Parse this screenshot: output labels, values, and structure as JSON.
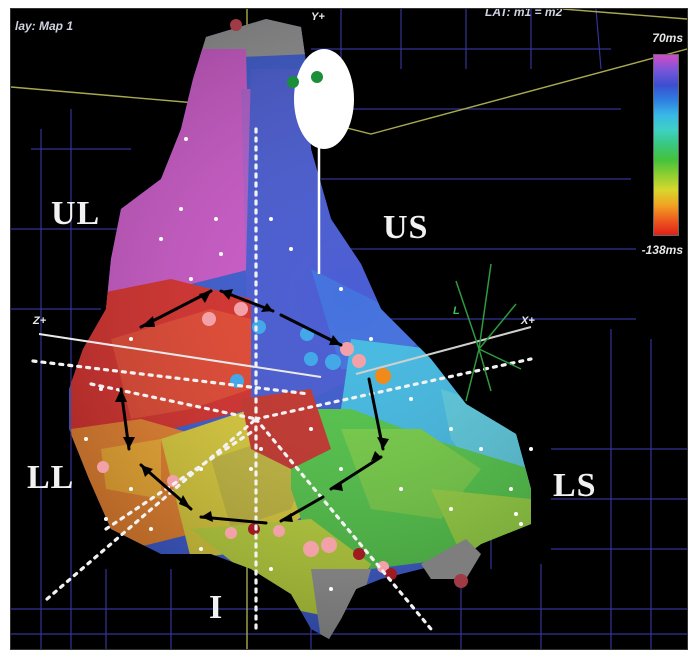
{
  "window": {
    "map_title": "lay: Map 1",
    "lat_label": "LAT: m1 = m2"
  },
  "axes": {
    "y": "Y+",
    "x": "X+",
    "z": "Z+",
    "l": "L"
  },
  "regions": {
    "ul": "UL",
    "us": "US",
    "ll": "LL",
    "ls": "LS",
    "i": "I"
  },
  "color_scale": {
    "max_label": "70ms",
    "min_label": "-138ms",
    "colors": [
      "#d24cc4",
      "#7a55d8",
      "#3b4fd0",
      "#2f7ee0",
      "#38b8e6",
      "#3fd1c4",
      "#39c77d",
      "#44c23c",
      "#8fcf32",
      "#d8d72c",
      "#f0a422",
      "#ee5c1e",
      "#e0201c"
    ]
  },
  "colors": {
    "background": "#000000",
    "grid": "#3a3aa8"
  }
}
